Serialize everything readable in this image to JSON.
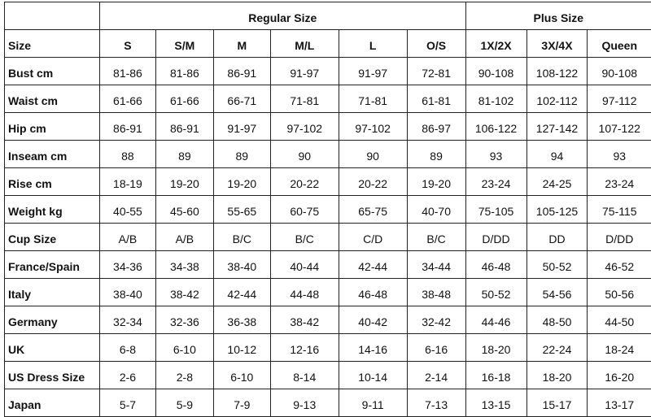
{
  "groups": [
    {
      "label": "Regular Size",
      "span": 6
    },
    {
      "label": "Plus Size",
      "span": 3
    }
  ],
  "header": {
    "label": "Size",
    "sizes": [
      "S",
      "S/M",
      "M",
      "M/L",
      "L",
      "O/S",
      "1X/2X",
      "3X/4X",
      "Queen"
    ]
  },
  "rows": [
    {
      "label": "Bust cm",
      "values": [
        "81-86",
        "81-86",
        "86-91",
        "91-97",
        "91-97",
        "72-81",
        "90-108",
        "108-122",
        "90-108"
      ]
    },
    {
      "label": "Waist cm",
      "values": [
        "61-66",
        "61-66",
        "66-71",
        "71-81",
        "71-81",
        "61-81",
        "81-102",
        "102-112",
        "97-112"
      ]
    },
    {
      "label": "Hip cm",
      "values": [
        "86-91",
        "86-91",
        "91-97",
        "97-102",
        "97-102",
        "86-97",
        "106-122",
        "127-142",
        "107-122"
      ]
    },
    {
      "label": "Inseam cm",
      "values": [
        "88",
        "89",
        "89",
        "90",
        "90",
        "89",
        "93",
        "94",
        "93"
      ]
    },
    {
      "label": "Rise cm",
      "values": [
        "18-19",
        "19-20",
        "19-20",
        "20-22",
        "20-22",
        "19-20",
        "23-24",
        "24-25",
        "23-24"
      ]
    },
    {
      "label": "Weight kg",
      "values": [
        "40-55",
        "45-60",
        "55-65",
        "60-75",
        "65-75",
        "40-70",
        "75-105",
        "105-125",
        "75-115"
      ]
    },
    {
      "label": "Cup Size",
      "values": [
        "A/B",
        "A/B",
        "B/C",
        "B/C",
        "C/D",
        "B/C",
        "D/DD",
        "DD",
        "D/DD"
      ]
    },
    {
      "label": "France/Spain",
      "values": [
        "34-36",
        "34-38",
        "38-40",
        "40-44",
        "42-44",
        "34-44",
        "46-48",
        "50-52",
        "46-52"
      ]
    },
    {
      "label": "Italy",
      "values": [
        "38-40",
        "38-42",
        "42-44",
        "44-48",
        "46-48",
        "38-48",
        "50-52",
        "54-56",
        "50-56"
      ]
    },
    {
      "label": "Germany",
      "values": [
        "32-34",
        "32-36",
        "36-38",
        "38-42",
        "40-42",
        "32-42",
        "44-46",
        "48-50",
        "44-50"
      ]
    },
    {
      "label": "UK",
      "values": [
        "6-8",
        "6-10",
        "10-12",
        "12-16",
        "14-16",
        "6-16",
        "18-20",
        "22-24",
        "18-24"
      ]
    },
    {
      "label": "US Dress Size",
      "values": [
        "2-6",
        "2-8",
        "6-10",
        "8-14",
        "10-14",
        "2-14",
        "16-18",
        "18-20",
        "16-20"
      ]
    },
    {
      "label": "Japan",
      "values": [
        "5-7",
        "5-9",
        "7-9",
        "9-13",
        "9-11",
        "7-13",
        "13-15",
        "15-17",
        "13-17"
      ]
    }
  ]
}
